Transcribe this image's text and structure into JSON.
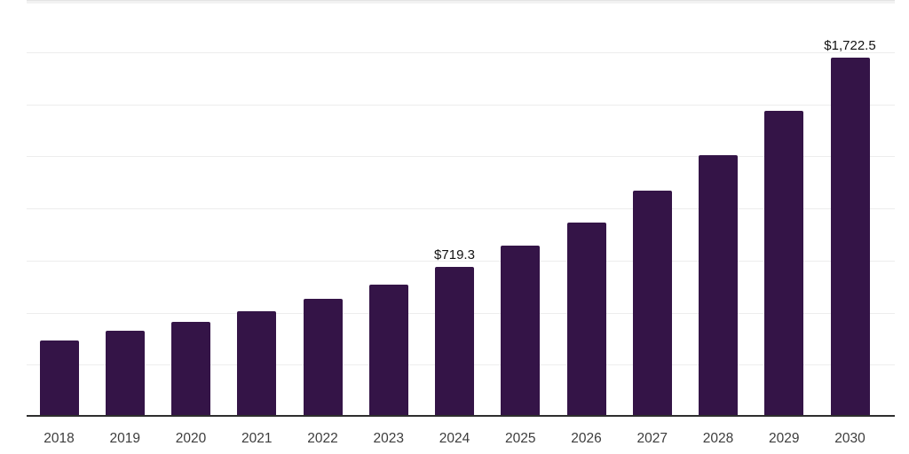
{
  "chart_data": {
    "type": "bar",
    "title": "",
    "xlabel": "",
    "ylabel": "",
    "categories": [
      "2018",
      "2019",
      "2020",
      "2021",
      "2022",
      "2023",
      "2024",
      "2025",
      "2026",
      "2027",
      "2028",
      "2029",
      "2030"
    ],
    "values": [
      366,
      411,
      457,
      506,
      565,
      634,
      719.3,
      820,
      933,
      1085,
      1255,
      1468,
      1722.5
    ],
    "value_labels": [
      {
        "category": "2024",
        "text": "$719.3"
      },
      {
        "category": "2030",
        "text": "$1,722.5"
      }
    ],
    "ylim": [
      0,
      2000
    ],
    "grid_step": 250,
    "grid": true,
    "legend": false,
    "y_tick_labels_visible": false
  },
  "colors": {
    "background": "#ffffff",
    "bar": "#341447",
    "axis": "#2e2e2e",
    "grid": "#ededed",
    "grid_top_band": "#f2f2f2",
    "tick_label": "#3d3d3d",
    "value_label": "#111111"
  }
}
